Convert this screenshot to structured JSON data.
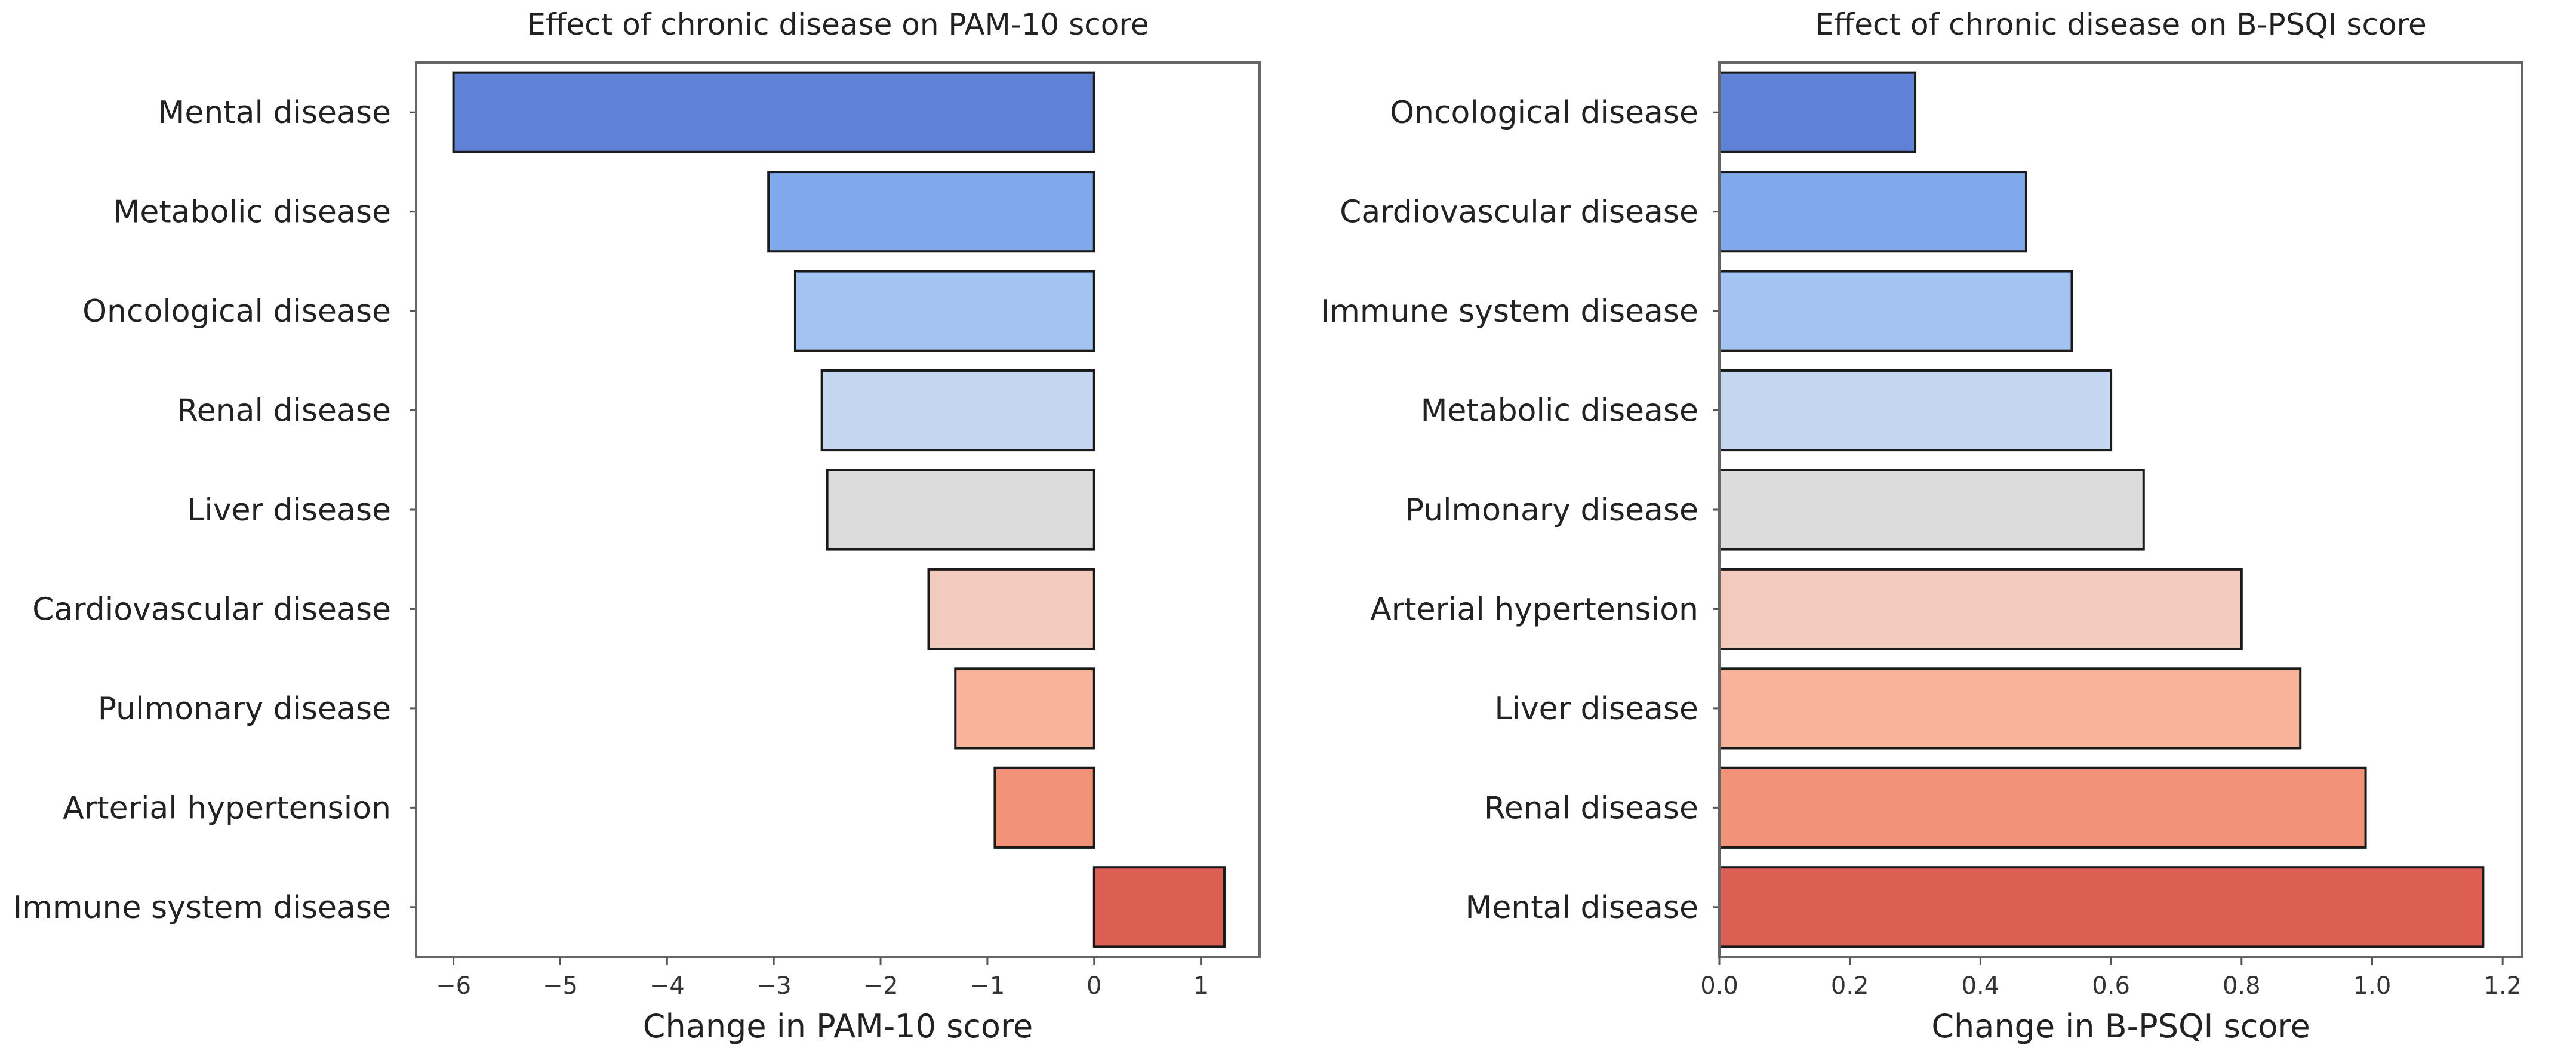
{
  "chart_data": [
    {
      "type": "bar",
      "orientation": "horizontal",
      "title": "Effect of chronic disease on PAM-10 score",
      "xlabel": "Change in PAM-10 score",
      "ylabel": "",
      "xlim": [
        -6.35,
        1.55
      ],
      "xticks": [
        -6,
        -5,
        -4,
        -3,
        -2,
        -1,
        0,
        1
      ],
      "xtick_labels": [
        "−6",
        "−5",
        "−4",
        "−3",
        "−2",
        "−1",
        "0",
        "1"
      ],
      "categories": [
        "Mental disease",
        "Metabolic disease",
        "Oncological disease",
        "Renal disease",
        "Liver disease ",
        "Cardiovascular disease ",
        "Pulmonary disease ",
        "Arterial hypertension ",
        "Immune system disease"
      ],
      "values": [
        -6.0,
        -3.05,
        -2.8,
        -2.55,
        -2.5,
        -1.55,
        -1.3,
        -0.93,
        1.22
      ],
      "colors": [
        "#5f82d6",
        "#80a8ec",
        "#a3c3f3",
        "#c4d6f0",
        "#dcdcdc",
        "#f2cbbd",
        "#f9b39b",
        "#f29278",
        "#dd5f53"
      ]
    },
    {
      "type": "bar",
      "orientation": "horizontal",
      "title": "Effect of chronic disease on B-PSQI score",
      "xlabel": "Change in B-PSQI score",
      "ylabel": "",
      "xlim": [
        0.0,
        1.23
      ],
      "xticks": [
        0.0,
        0.2,
        0.4,
        0.6,
        0.8,
        1.0,
        1.2
      ],
      "xtick_labels": [
        "0.0",
        "0.2",
        "0.4",
        "0.6",
        "0.8",
        "1.0",
        "1.2"
      ],
      "categories": [
        "Oncological disease",
        "Cardiovascular disease",
        "Immune system disease",
        "Metabolic disease",
        "Pulmonary disease",
        "Arterial hypertension",
        "Liver disease",
        "Renal disease",
        "Mental disease"
      ],
      "values": [
        0.3,
        0.47,
        0.54,
        0.6,
        0.65,
        0.8,
        0.89,
        0.99,
        1.17
      ],
      "colors": [
        "#5f82d6",
        "#80a8ec",
        "#a3c3f3",
        "#c4d6f0",
        "#dcdcdc",
        "#f2cbbd",
        "#f9b39b",
        "#f29278",
        "#dd5f53"
      ]
    }
  ]
}
